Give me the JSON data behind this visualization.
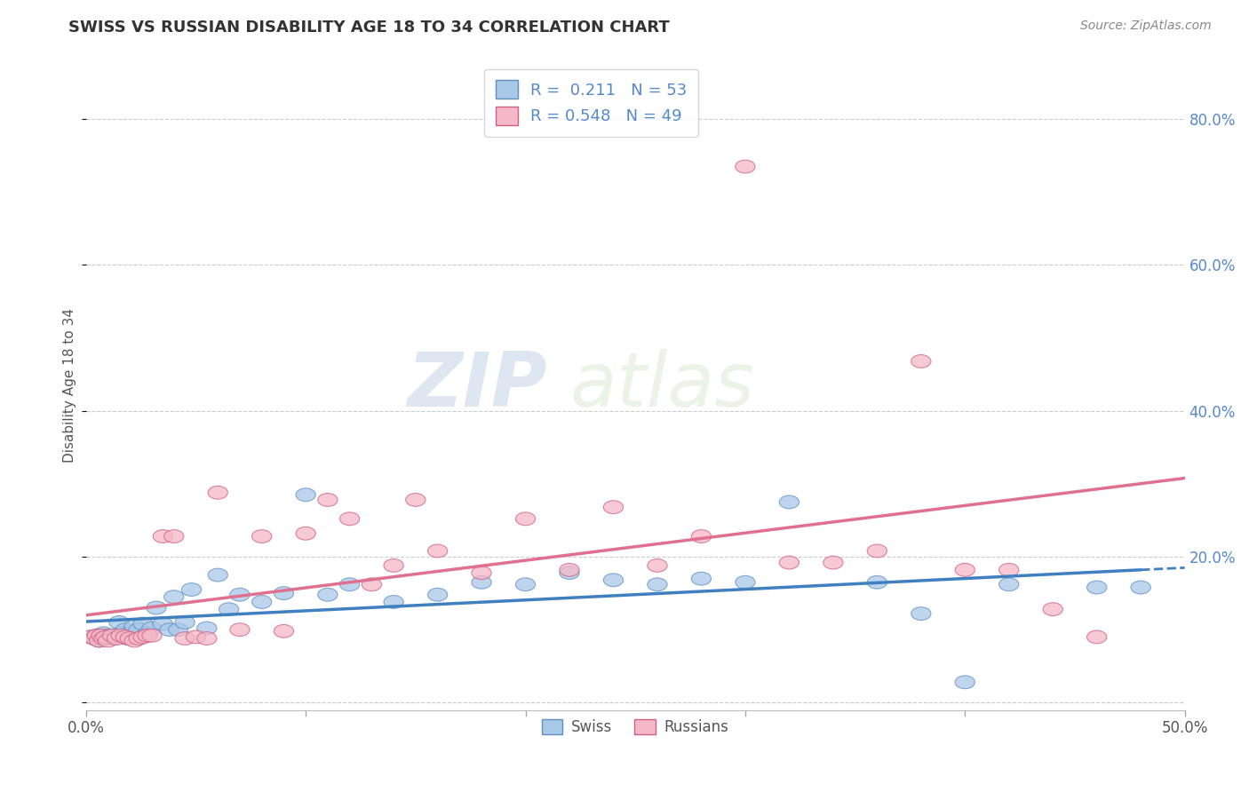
{
  "title": "SWISS VS RUSSIAN DISABILITY AGE 18 TO 34 CORRELATION CHART",
  "source": "Source: ZipAtlas.com",
  "ylabel": "Disability Age 18 to 34",
  "xlim": [
    0.0,
    0.5
  ],
  "ylim": [
    -0.01,
    0.88
  ],
  "xticks": [
    0.0,
    0.1,
    0.2,
    0.3,
    0.4,
    0.5
  ],
  "xticklabels": [
    "0.0%",
    "",
    "",
    "",
    "",
    "50.0%"
  ],
  "yticks": [
    0.0,
    0.2,
    0.4,
    0.6,
    0.8
  ],
  "yticklabels_right": [
    "",
    "20.0%",
    "40.0%",
    "60.0%",
    "80.0%"
  ],
  "grid_color": "#cccccc",
  "bg_color": "#ffffff",
  "swiss_color": "#a8c8e8",
  "russian_color": "#f4b8c8",
  "swiss_edge_color": "#6090c0",
  "russian_edge_color": "#d06080",
  "swiss_line_color": "#4080c0",
  "russian_line_color": "#e07090",
  "label_color": "#5588cc",
  "swiss_R": 0.211,
  "swiss_N": 53,
  "russian_R": 0.548,
  "russian_N": 49,
  "watermark_zip": "ZIP",
  "watermark_atlas": "atlas",
  "swiss_scatter_x": [
    0.002,
    0.004,
    0.005,
    0.006,
    0.007,
    0.008,
    0.009,
    0.01,
    0.011,
    0.012,
    0.013,
    0.015,
    0.016,
    0.018,
    0.019,
    0.02,
    0.022,
    0.024,
    0.026,
    0.028,
    0.03,
    0.032,
    0.035,
    0.038,
    0.04,
    0.042,
    0.045,
    0.048,
    0.055,
    0.06,
    0.065,
    0.07,
    0.08,
    0.09,
    0.1,
    0.11,
    0.12,
    0.14,
    0.16,
    0.18,
    0.2,
    0.22,
    0.24,
    0.26,
    0.28,
    0.3,
    0.32,
    0.36,
    0.38,
    0.4,
    0.42,
    0.46,
    0.48
  ],
  "swiss_scatter_y": [
    0.09,
    0.088,
    0.092,
    0.085,
    0.09,
    0.095,
    0.088,
    0.092,
    0.09,
    0.088,
    0.092,
    0.11,
    0.095,
    0.1,
    0.088,
    0.095,
    0.105,
    0.1,
    0.108,
    0.095,
    0.102,
    0.13,
    0.108,
    0.1,
    0.145,
    0.1,
    0.11,
    0.155,
    0.102,
    0.175,
    0.128,
    0.148,
    0.138,
    0.15,
    0.285,
    0.148,
    0.162,
    0.138,
    0.148,
    0.165,
    0.162,
    0.178,
    0.168,
    0.162,
    0.17,
    0.165,
    0.275,
    0.165,
    0.122,
    0.028,
    0.162,
    0.158,
    0.158
  ],
  "russian_scatter_x": [
    0.002,
    0.004,
    0.005,
    0.006,
    0.007,
    0.008,
    0.009,
    0.01,
    0.012,
    0.014,
    0.016,
    0.018,
    0.02,
    0.022,
    0.024,
    0.026,
    0.028,
    0.03,
    0.035,
    0.04,
    0.045,
    0.05,
    0.055,
    0.06,
    0.07,
    0.08,
    0.09,
    0.1,
    0.11,
    0.12,
    0.13,
    0.14,
    0.15,
    0.16,
    0.18,
    0.2,
    0.22,
    0.24,
    0.26,
    0.28,
    0.3,
    0.32,
    0.34,
    0.36,
    0.38,
    0.4,
    0.42,
    0.44,
    0.46
  ],
  "russian_scatter_y": [
    0.09,
    0.088,
    0.092,
    0.085,
    0.092,
    0.088,
    0.09,
    0.085,
    0.092,
    0.088,
    0.092,
    0.09,
    0.088,
    0.085,
    0.088,
    0.09,
    0.092,
    0.092,
    0.228,
    0.228,
    0.088,
    0.09,
    0.088,
    0.288,
    0.1,
    0.228,
    0.098,
    0.232,
    0.278,
    0.252,
    0.162,
    0.188,
    0.278,
    0.208,
    0.178,
    0.252,
    0.182,
    0.268,
    0.188,
    0.228,
    0.735,
    0.192,
    0.192,
    0.208,
    0.468,
    0.182,
    0.182,
    0.128,
    0.09
  ]
}
